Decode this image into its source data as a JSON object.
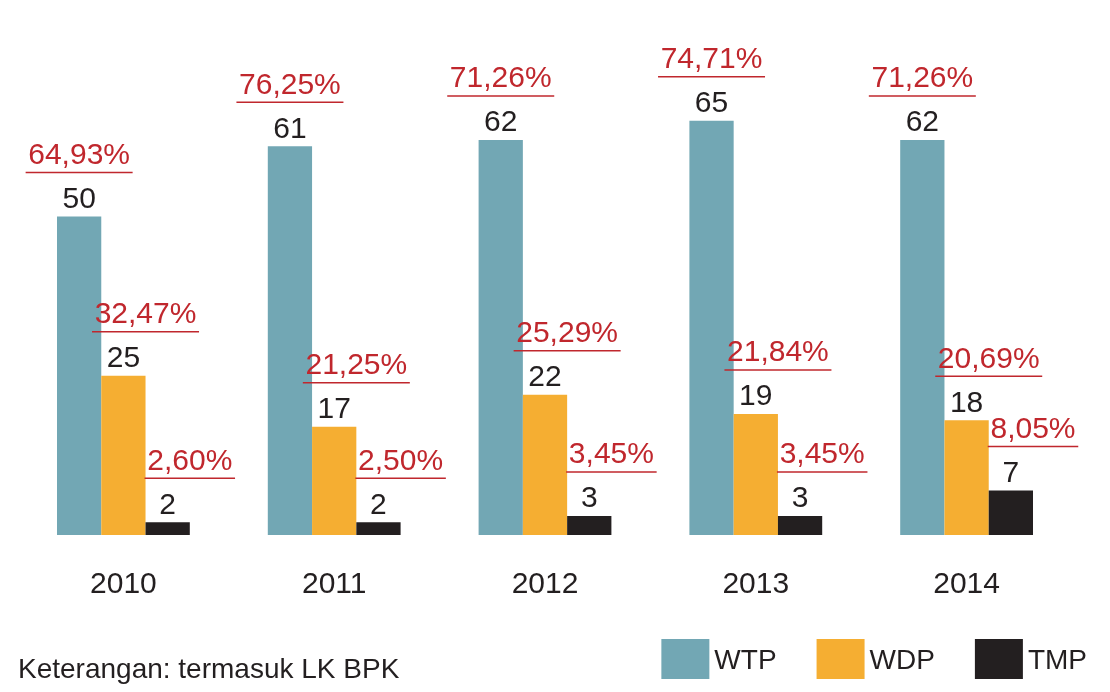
{
  "chart_data": {
    "type": "bar",
    "categories": [
      "2010",
      "2011",
      "2012",
      "2013",
      "2014"
    ],
    "series": [
      {
        "name": "WTP",
        "color": "#72a7b4",
        "values": [
          50,
          61,
          62,
          65,
          62
        ]
      },
      {
        "name": "WDP",
        "color": "#f5ae32",
        "values": [
          25,
          17,
          22,
          19,
          18
        ]
      },
      {
        "name": "TMP",
        "color": "#231f20",
        "values": [
          2,
          2,
          3,
          3,
          7
        ]
      }
    ],
    "data_labels": true,
    "legend": "bottom right",
    "annotations": [
      "Keterangan: termasuk LK BPK",
      "64,93%",
      "76,25%",
      "71,26%",
      "74,71%",
      "71,26%",
      "32,47%",
      "21,25%",
      "25,29%",
      "21,84%",
      "20,69%",
      "2,60%",
      "2,50%",
      "3,45%",
      "3,45%",
      "8,05%"
    ]
  }
}
